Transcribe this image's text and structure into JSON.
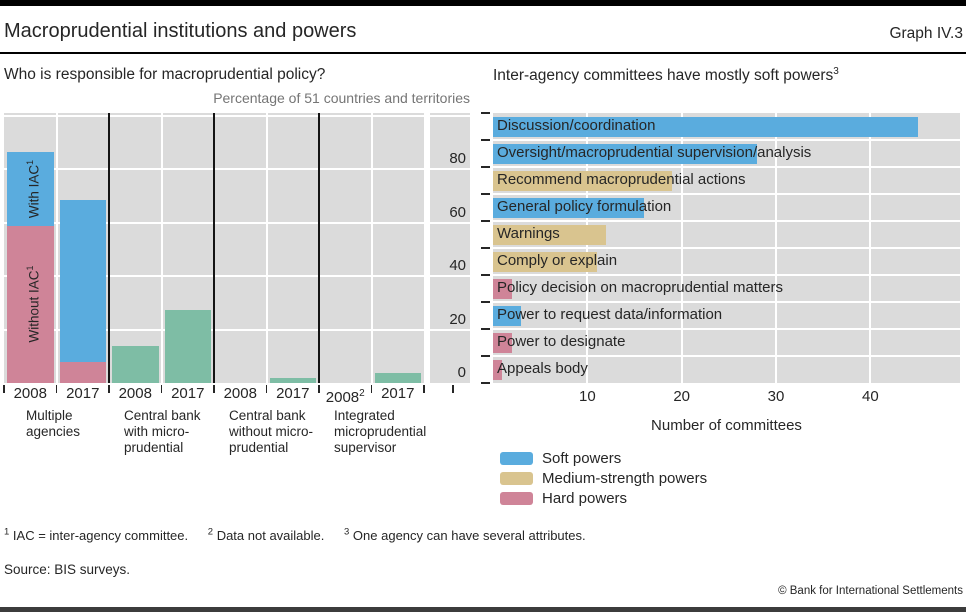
{
  "header": {
    "title": "Macroprudential institutions and powers",
    "graph_label": "Graph IV.3"
  },
  "colors": {
    "soft": "#5AACDE",
    "medium": "#D9C48F",
    "hard": "#CF8498",
    "green": "#7EBDA5",
    "plot_bg": "#DBDBDB",
    "grid": "#FFFFFF",
    "separator": "#141414",
    "text": "#262626",
    "muted": "#757575"
  },
  "chart_data": [
    {
      "type": "bar",
      "panel": "left",
      "title": "Who is responsible for macroprudential policy?",
      "unit_label": "Percentage of 51 countries and territories",
      "ylim": [
        0,
        101
      ],
      "yticks": [
        0,
        20,
        40,
        60,
        80
      ],
      "grid_values": [
        20,
        40,
        60,
        80,
        100
      ],
      "grid": "on",
      "groups": [
        {
          "label_lines": [
            "Multiple",
            "agencies"
          ],
          "bars": [
            {
              "year": "2008",
              "segments": [
                {
                  "label": "Without IAC",
                  "label_sup": "1",
                  "value": 58.8,
                  "color_key": "hard"
                },
                {
                  "label": "With IAC",
                  "label_sup": "1",
                  "value": 27.5,
                  "color_key": "soft"
                }
              ]
            },
            {
              "year": "2017",
              "segments": [
                {
                  "value": 7.8,
                  "color_key": "hard"
                },
                {
                  "value": 60.8,
                  "color_key": "soft"
                }
              ]
            }
          ]
        },
        {
          "label_lines": [
            "Central bank",
            "with micro-",
            "prudential"
          ],
          "bars": [
            {
              "year": "2008",
              "segments": [
                {
                  "value": 13.7,
                  "color_key": "green"
                }
              ]
            },
            {
              "year": "2017",
              "segments": [
                {
                  "value": 27.5,
                  "color_key": "green"
                }
              ]
            }
          ]
        },
        {
          "label_lines": [
            "Central bank",
            "without micro-",
            "prudential"
          ],
          "bars": [
            {
              "year": "2008",
              "segments": []
            },
            {
              "year": "2017",
              "segments": [
                {
                  "value": 2.0,
                  "color_key": "green"
                }
              ]
            }
          ]
        },
        {
          "label_lines": [
            "Integrated",
            "microprudential",
            "supervisor"
          ],
          "bars": [
            {
              "year": "2008",
              "year_sup": "2",
              "segments": []
            },
            {
              "year": "2017",
              "segments": [
                {
                  "value": 3.9,
                  "color_key": "green"
                }
              ]
            }
          ]
        }
      ]
    },
    {
      "type": "bar-horizontal",
      "panel": "right",
      "title": "Inter-agency committees have mostly soft powers",
      "title_sup": "3",
      "xlabel": "Number of committees",
      "xticks": [
        10,
        20,
        30,
        40
      ],
      "xlim": [
        0,
        49.5
      ],
      "grid": "on",
      "legend_position": "below",
      "bars": [
        {
          "label": "Discussion/coordination",
          "value": 45,
          "power": "soft"
        },
        {
          "label": "Oversight/macroprudential supervision/analysis",
          "value": 28,
          "power": "soft"
        },
        {
          "label": "Recommend macroprudential actions",
          "value": 19,
          "power": "medium"
        },
        {
          "label": "General policy formulation",
          "value": 16,
          "power": "soft"
        },
        {
          "label": "Warnings",
          "value": 12,
          "power": "medium"
        },
        {
          "label": "Comply or explain",
          "value": 11,
          "power": "medium"
        },
        {
          "label": "Policy decision on macroprudential matters",
          "value": 2,
          "power": "hard"
        },
        {
          "label": "Power to request data/information",
          "value": 3,
          "power": "soft"
        },
        {
          "label": "Power to designate",
          "value": 2,
          "power": "hard"
        },
        {
          "label": "Appeals body",
          "value": 1,
          "power": "hard"
        }
      ],
      "legend": [
        {
          "label": "Soft powers",
          "color_key": "soft"
        },
        {
          "label": "Medium-strength powers",
          "color_key": "medium"
        },
        {
          "label": "Hard powers",
          "color_key": "hard"
        }
      ]
    }
  ],
  "footer": {
    "footnotes": [
      {
        "sup": "1",
        "text": "IAC = inter-agency committee."
      },
      {
        "sup": "2",
        "text": "Data not available."
      },
      {
        "sup": "3",
        "text": "One agency can have several attributes."
      }
    ],
    "source": "Source: BIS surveys.",
    "copyright": "© Bank for International Settlements"
  }
}
